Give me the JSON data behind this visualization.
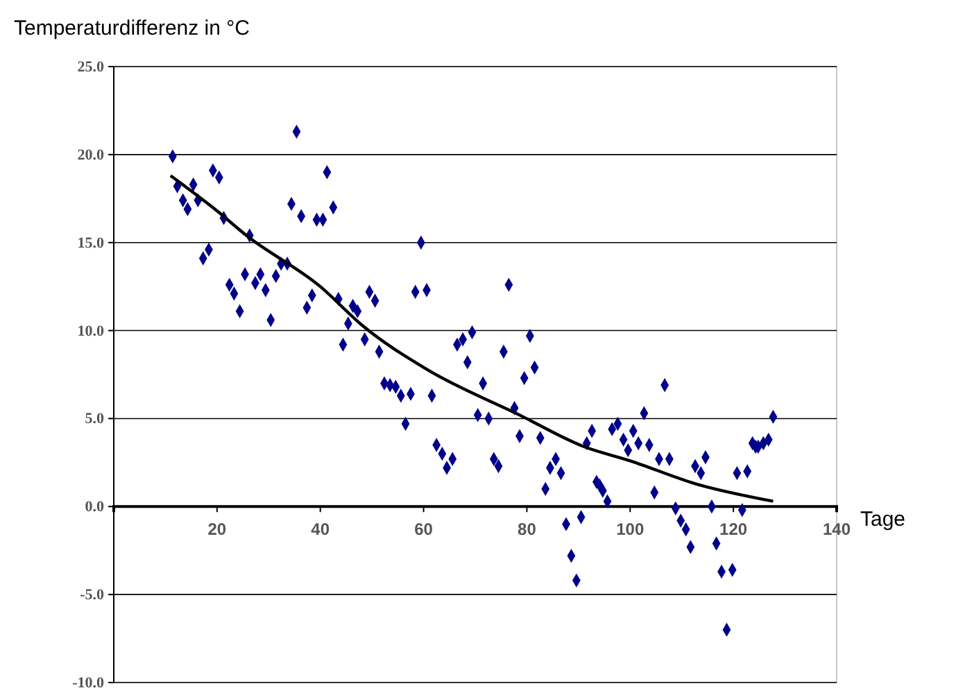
{
  "chart_data": {
    "type": "scatter",
    "ylabel": "Temperaturdifferenz in °C",
    "xlabel": "Tage",
    "xlim": [
      0,
      140
    ],
    "xticks": [
      {
        "value": 0,
        "label": null
      },
      20,
      40,
      60,
      80,
      100,
      120,
      140
    ],
    "ylim": [
      -10,
      25
    ],
    "yticks": [
      {
        "value": -10,
        "label": "-10.0"
      },
      {
        "value": -5,
        "label": "-5.0"
      },
      {
        "value": 0,
        "label": "0.0"
      },
      {
        "value": 5,
        "label": "5.0"
      },
      {
        "value": 10,
        "label": "10.0"
      },
      {
        "value": 15,
        "label": "15.0"
      },
      {
        "value": 20,
        "label": "20.0"
      },
      {
        "value": 25,
        "label": "25.0"
      }
    ],
    "grid": "y",
    "marker": "diamond",
    "series": [
      {
        "color": "#00008b",
        "x": [
          11.4,
          12.3,
          13.4,
          14.3,
          15.4,
          16.3,
          17.3,
          18.4,
          19.2,
          20.4,
          21.3,
          22.4,
          23.3,
          24.4,
          25.4,
          26.3,
          27.4,
          28.4,
          29.4,
          30.4,
          31.4,
          32.4,
          33.6,
          34.4,
          35.4,
          36.3,
          37.4,
          38.4,
          39.3,
          40.5,
          41.3,
          42.5,
          43.5,
          44.4,
          45.4,
          46.3,
          47.2,
          48.6,
          49.5,
          50.6,
          51.4,
          52.4,
          53.5,
          54.6,
          55.6,
          56.5,
          57.5,
          58.4,
          59.5,
          60.6,
          61.6,
          62.5,
          63.6,
          64.5,
          65.6,
          66.5,
          67.6,
          68.5,
          69.4,
          70.5,
          71.5,
          72.6,
          73.6,
          74.5,
          75.5,
          76.5,
          77.6,
          78.6,
          79.5,
          80.6,
          81.5,
          82.6,
          83.6,
          84.5,
          85.6,
          86.6,
          87.6,
          88.6,
          89.6,
          90.5,
          91.6,
          92.6,
          93.5,
          94.1,
          94.7,
          95.6,
          96.5,
          97.6,
          98.7,
          99.6,
          100.6,
          101.6,
          102.7,
          103.7,
          104.7,
          105.6,
          106.7,
          107.6,
          108.8,
          109.8,
          110.8,
          111.7,
          112.6,
          113.7,
          114.6,
          115.8,
          116.7,
          117.7,
          118.7,
          119.8,
          120.7,
          121.7,
          122.7,
          123.7,
          124.3,
          124.8,
          125.8,
          126.8,
          127.7
        ],
        "values": [
          19.9,
          18.2,
          17.4,
          16.9,
          18.3,
          17.4,
          14.1,
          14.6,
          19.1,
          18.7,
          16.4,
          12.6,
          12.1,
          11.1,
          13.2,
          15.4,
          12.7,
          13.2,
          12.3,
          10.6,
          13.1,
          13.8,
          13.8,
          17.2,
          21.3,
          16.5,
          11.3,
          12.0,
          16.3,
          16.3,
          19.0,
          17.0,
          11.8,
          9.2,
          10.4,
          11.4,
          11.1,
          9.5,
          12.2,
          11.7,
          8.8,
          7.0,
          6.9,
          6.8,
          6.3,
          4.7,
          6.4,
          12.2,
          15.0,
          12.3,
          6.3,
          3.5,
          3.0,
          2.2,
          2.7,
          9.2,
          9.5,
          8.2,
          9.9,
          5.2,
          7.0,
          5.0,
          2.7,
          2.3,
          8.8,
          12.6,
          5.6,
          4.0,
          7.3,
          9.7,
          7.9,
          3.9,
          1.0,
          2.2,
          2.7,
          1.9,
          -1.0,
          -2.8,
          -4.2,
          -0.6,
          3.6,
          4.3,
          1.4,
          1.2,
          0.9,
          0.3,
          4.4,
          4.7,
          3.8,
          3.2,
          4.3,
          3.6,
          5.3,
          3.5,
          0.8,
          2.7,
          6.9,
          2.7,
          -0.1,
          -0.8,
          -1.3,
          -2.3,
          2.3,
          1.9,
          2.8,
          0.0,
          -2.1,
          -3.7,
          -7.0,
          -3.6,
          1.9,
          -0.2,
          2.0,
          3.6,
          3.4,
          3.4,
          3.6,
          3.8,
          5.1
        ]
      },
      {
        "type": "line",
        "color": "#000000",
        "marker": "none",
        "x": [
          11,
          20,
          25.7,
          40,
          48.1,
          60.6,
          78.6,
          91.1,
          100,
          112.6,
          127.7
        ],
        "values": [
          18.8,
          16.8,
          15.4,
          12.5,
          10.3,
          7.8,
          5.2,
          3.4,
          2.6,
          1.3,
          0.3
        ]
      }
    ]
  }
}
